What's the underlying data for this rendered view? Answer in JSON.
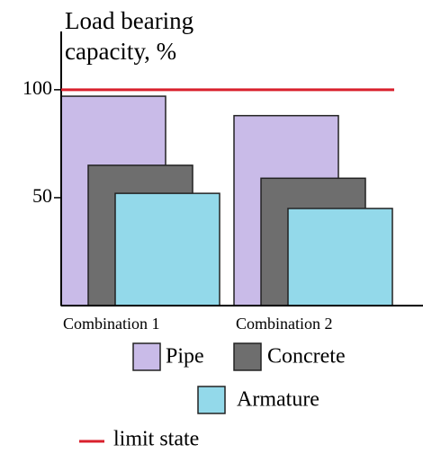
{
  "chart_data": {
    "type": "bar",
    "title": "Load bearing capacity, %",
    "categories": [
      "Combination 1",
      "Combination 2"
    ],
    "series": [
      {
        "name": "Pipe",
        "color": "#c9bbe8",
        "values": [
          97,
          88
        ]
      },
      {
        "name": "Concrete",
        "color": "#6e6e6e",
        "values": [
          65,
          59
        ]
      },
      {
        "name": "Armature",
        "color": "#93d9ea",
        "values": [
          52,
          45
        ]
      }
    ],
    "ylim": [
      0,
      127
    ],
    "yticks": [
      50,
      100
    ],
    "limit": {
      "value": 100,
      "label": "limit state",
      "color": "#d9202c"
    }
  }
}
